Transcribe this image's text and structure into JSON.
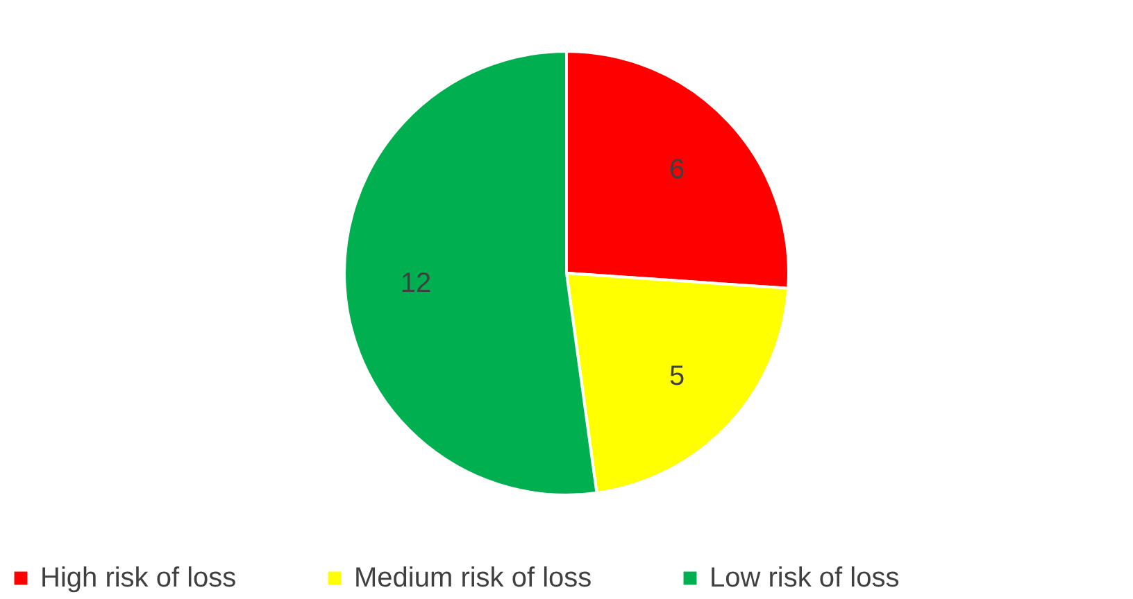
{
  "chart_data": {
    "type": "pie",
    "categories": [
      "High risk of loss",
      "Medium risk of loss",
      "Low risk of loss"
    ],
    "values": [
      6,
      5,
      12
    ],
    "colors": [
      "#ff0000",
      "#ffff00",
      "#00b050"
    ],
    "data_labels": true,
    "legend": "bottom"
  }
}
